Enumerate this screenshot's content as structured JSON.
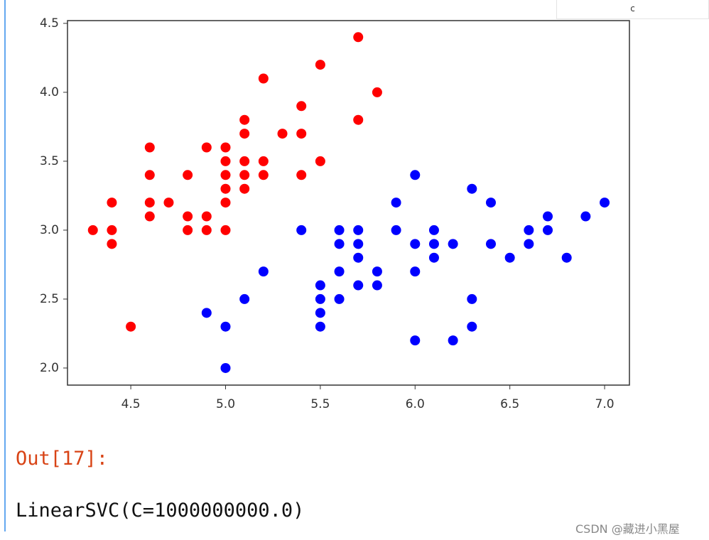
{
  "top_box": {
    "text": "c"
  },
  "chart_data": {
    "type": "scatter",
    "series": [
      {
        "color": "red",
        "x": [
          4.3,
          4.4,
          4.4,
          4.4,
          4.5,
          4.6,
          4.6,
          4.6,
          4.6,
          4.7,
          4.8,
          4.8,
          4.8,
          4.9,
          4.9,
          4.9,
          5.0,
          5.0,
          5.0,
          5.0,
          5.0,
          5.0,
          5.1,
          5.1,
          5.1,
          5.1,
          5.1,
          5.2,
          5.2,
          5.2,
          5.3,
          5.4,
          5.4,
          5.4,
          5.5,
          5.5,
          5.7,
          5.7,
          5.8
        ],
        "values": [
          3.0,
          3.2,
          3.0,
          2.9,
          2.3,
          3.6,
          3.4,
          3.2,
          3.1,
          3.2,
          3.4,
          3.1,
          3.0,
          3.6,
          3.1,
          3.0,
          3.6,
          3.5,
          3.4,
          3.3,
          3.2,
          3.0,
          3.8,
          3.7,
          3.5,
          3.4,
          3.3,
          4.1,
          3.5,
          3.4,
          3.7,
          3.9,
          3.7,
          3.4,
          4.2,
          3.5,
          4.4,
          3.8,
          4.0
        ]
      },
      {
        "color": "blue",
        "x": [
          4.9,
          5.0,
          5.0,
          5.1,
          5.2,
          5.4,
          5.5,
          5.5,
          5.5,
          5.5,
          5.6,
          5.6,
          5.6,
          5.6,
          5.7,
          5.7,
          5.7,
          5.7,
          5.8,
          5.8,
          5.9,
          5.9,
          6.0,
          6.0,
          6.0,
          6.0,
          6.1,
          6.1,
          6.1,
          6.2,
          6.2,
          6.3,
          6.3,
          6.3,
          6.4,
          6.4,
          6.5,
          6.6,
          6.6,
          6.7,
          6.7,
          6.8,
          6.9,
          7.0
        ],
        "values": [
          2.4,
          2.3,
          2.0,
          2.5,
          2.7,
          3.0,
          2.6,
          2.5,
          2.4,
          2.3,
          3.0,
          2.9,
          2.7,
          2.5,
          3.0,
          2.9,
          2.8,
          2.6,
          2.7,
          2.6,
          3.2,
          3.0,
          3.4,
          2.9,
          2.7,
          2.2,
          3.0,
          2.9,
          2.8,
          2.9,
          2.2,
          3.3,
          2.5,
          2.3,
          3.2,
          2.9,
          2.8,
          3.0,
          2.9,
          3.1,
          3.0,
          2.8,
          3.1,
          3.2
        ]
      }
    ],
    "xlim": [
      4.166,
      7.131
    ],
    "xticks": [
      4.5,
      {
        "value": 5,
        "label": "5.0"
      },
      5.5,
      {
        "value": 6,
        "label": "6.0"
      },
      6.5,
      {
        "value": 7,
        "label": "7.0"
      }
    ],
    "ylim": [
      1.876,
      4.52
    ],
    "yticks": [
      {
        "value": 2,
        "label": "2.0"
      },
      2.5,
      {
        "value": 3,
        "label": "3.0"
      },
      3.5,
      {
        "value": 4,
        "label": "4.0"
      },
      4.5
    ]
  },
  "output": {
    "prompt": "Out[17]:",
    "text": "LinearSVC(C=1000000000.0)"
  },
  "watermark": "CSDN @藏进小黑屋"
}
